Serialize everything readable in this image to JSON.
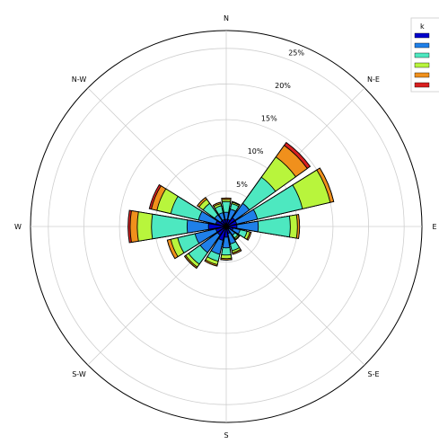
{
  "chart_data": {
    "type": "windrose",
    "directions": [
      "N",
      "NNE",
      "N-E",
      "ENE",
      "E",
      "ESE",
      "S-E",
      "SSE",
      "S",
      "SSW",
      "S-W",
      "WSW",
      "W",
      "WNW",
      "N-W",
      "NNW"
    ],
    "direction_labels": [
      "N",
      "N-E",
      "E",
      "S-E",
      "S",
      "S-W",
      "W",
      "N-W"
    ],
    "radial_ticks": [
      5,
      10,
      15,
      20,
      25
    ],
    "radial_tick_labels": [
      "5%",
      "10%",
      "15%",
      "20%",
      "25%"
    ],
    "rmax": 27.5,
    "grid": true,
    "legend_title": "k",
    "legend_location": "top-right",
    "bins": [
      {
        "label": "",
        "color": "#0000cc"
      },
      {
        "label": "",
        "color": "#1f7fe8"
      },
      {
        "label": "",
        "color": "#4de8c0"
      },
      {
        "label": "",
        "color": "#b8f53c"
      },
      {
        "label": "",
        "color": "#f0901c"
      },
      {
        "label": "",
        "color": "#d82020"
      }
    ],
    "cumulative_by_direction": [
      [
        1.0,
        2.0,
        3.5,
        3.8,
        4.0,
        4.0
      ],
      [
        1.0,
        2.5,
        3.3,
        3.5,
        3.6,
        3.6
      ],
      [
        1.5,
        4.0,
        8.5,
        12.0,
        14.0,
        14.5
      ],
      [
        1.5,
        4.5,
        11.0,
        15.0,
        15.5,
        15.5
      ],
      [
        1.5,
        4.5,
        9.0,
        10.0,
        10.3,
        10.3
      ],
      [
        1.0,
        2.0,
        3.0,
        3.4,
        3.6,
        3.6
      ],
      [
        0.5,
        1.5,
        2.0,
        2.2,
        2.3,
        2.3
      ],
      [
        1.0,
        2.5,
        3.5,
        3.8,
        4.0,
        4.0
      ],
      [
        1.5,
        3.0,
        4.0,
        4.5,
        4.7,
        4.7
      ],
      [
        2.0,
        4.0,
        5.0,
        5.5,
        5.7,
        5.7
      ],
      [
        1.5,
        4.5,
        6.5,
        7.0,
        7.2,
        7.2
      ],
      [
        1.5,
        4.5,
        7.0,
        8.0,
        8.5,
        8.5
      ],
      [
        2.5,
        5.5,
        10.5,
        12.5,
        13.5,
        13.8
      ],
      [
        1.5,
        4.0,
        8.0,
        10.0,
        10.8,
        11.1
      ],
      [
        1.0,
        2.0,
        4.0,
        4.7,
        5.0,
        5.0
      ],
      [
        1.0,
        2.0,
        3.0,
        3.3,
        3.5,
        3.5
      ]
    ]
  }
}
